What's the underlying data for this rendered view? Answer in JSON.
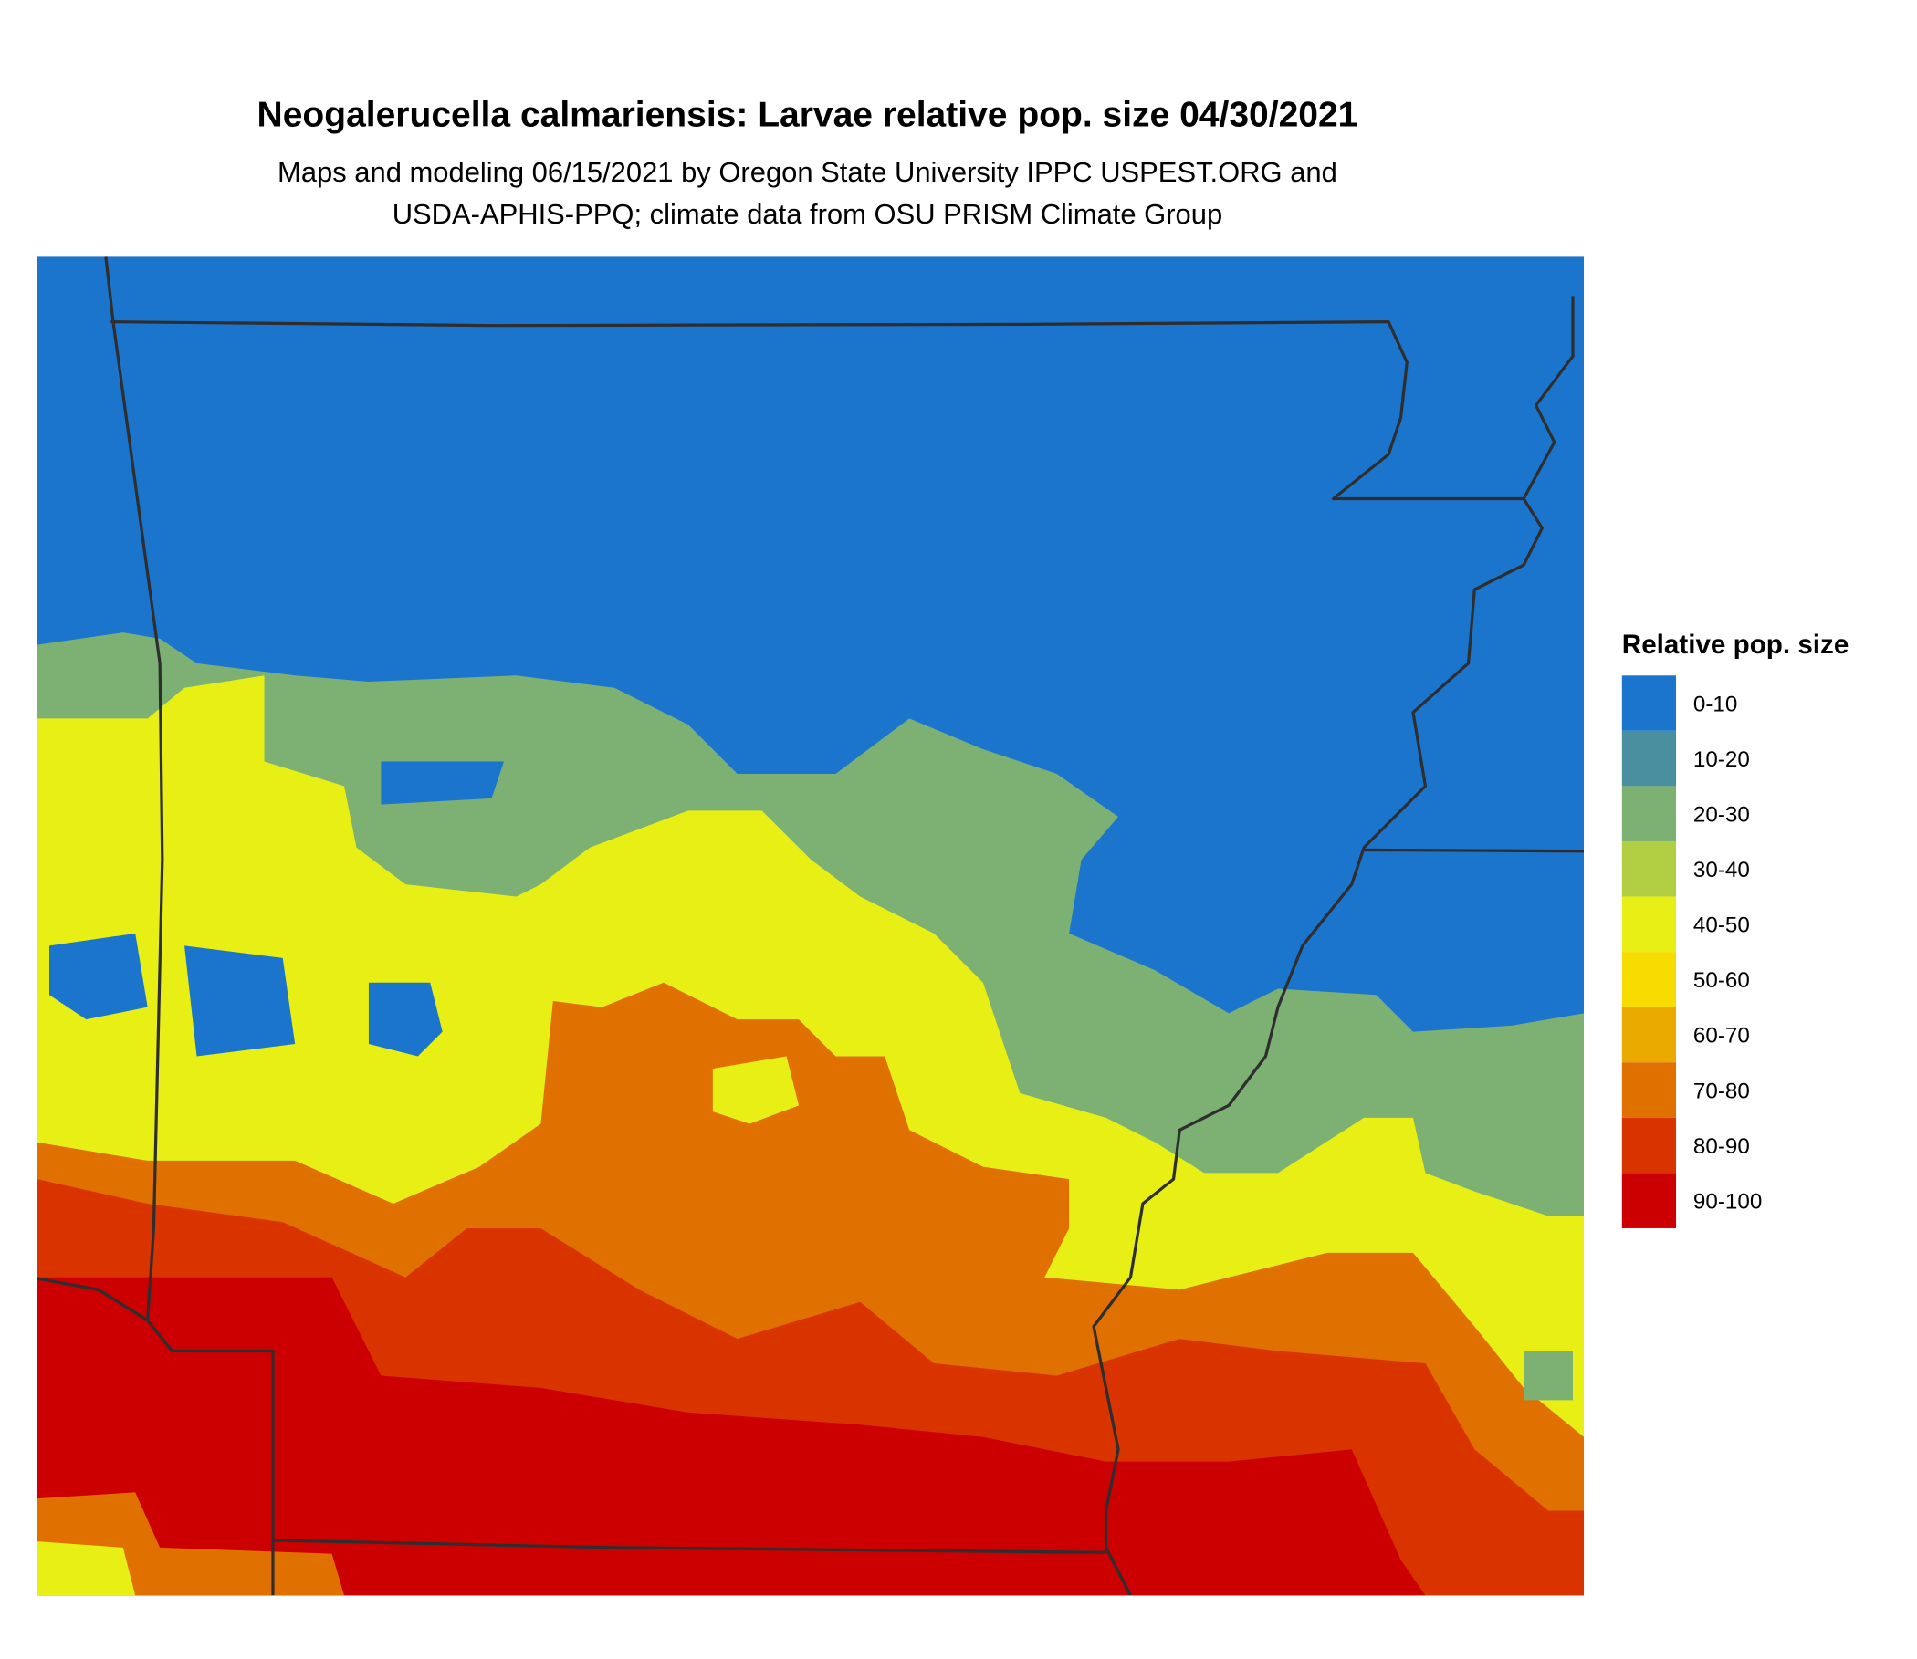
{
  "header": {
    "title": "Neogalerucella calmariensis: Larvae relative pop. size 04/30/2021",
    "subtitle": [
      "Maps and modeling 06/15/2021 by Oregon State University IPPC USPEST.ORG and",
      "USDA-APHIS-PPQ; climate data from OSU PRISM Climate Group"
    ]
  },
  "legend": {
    "title": "Relative pop. size",
    "items": [
      {
        "label": "0-10",
        "color": "#1c75cd"
      },
      {
        "label": "10-20",
        "color": "#4a8fa0"
      },
      {
        "label": "20-30",
        "color": "#7db073"
      },
      {
        "label": "30-40",
        "color": "#b2cf44"
      },
      {
        "label": "40-50",
        "color": "#e8ef14"
      },
      {
        "label": "50-60",
        "color": "#f7dc00"
      },
      {
        "label": "60-70",
        "color": "#ebaa00"
      },
      {
        "label": "70-80",
        "color": "#e07000"
      },
      {
        "label": "80-90",
        "color": "#d93300"
      },
      {
        "label": "90-100",
        "color": "#cc0000"
      }
    ]
  }
}
